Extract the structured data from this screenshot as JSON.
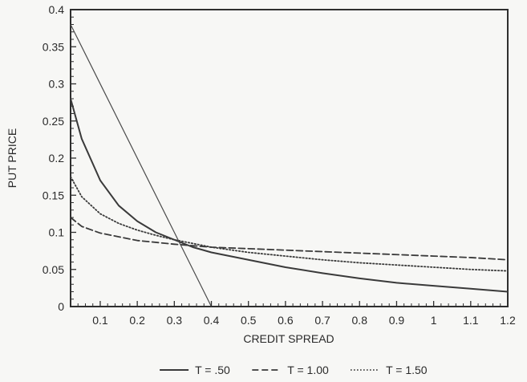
{
  "chart_data": {
    "type": "line",
    "xlabel": "CREDIT SPREAD",
    "ylabel": "PUT PRICE",
    "xlim": [
      0.02,
      1.2
    ],
    "ylim": [
      0,
      0.4
    ],
    "x_ticks": [
      0.1,
      0.2,
      0.3,
      0.4,
      0.5,
      0.6,
      0.7,
      0.8,
      0.9,
      1,
      1.1,
      1.2
    ],
    "x_tick_labels": [
      "0.1",
      "0.2",
      "0.3",
      "0.4",
      "0.5",
      "0.6",
      "0.7",
      "0.8",
      "0.9",
      "1",
      "1.1",
      "1.2"
    ],
    "y_ticks": [
      0,
      0.05,
      0.1,
      0.15,
      0.2,
      0.25,
      0.3,
      0.35,
      0.4
    ],
    "y_tick_labels": [
      "0",
      "0.05",
      "0.1",
      "0.15",
      "0.2",
      "0.25",
      "0.3",
      "0.35",
      "0.4"
    ],
    "grid": false,
    "legend_position": "bottom",
    "series": [
      {
        "name": "T = .50",
        "style": "solid",
        "color": "#3a3a3a",
        "points": [
          [
            0.02,
            0.28
          ],
          [
            0.05,
            0.226
          ],
          [
            0.1,
            0.17
          ],
          [
            0.15,
            0.136
          ],
          [
            0.2,
            0.115
          ],
          [
            0.25,
            0.1
          ],
          [
            0.3,
            0.09
          ],
          [
            0.35,
            0.08
          ],
          [
            0.4,
            0.073
          ],
          [
            0.5,
            0.063
          ],
          [
            0.6,
            0.053
          ],
          [
            0.7,
            0.045
          ],
          [
            0.8,
            0.038
          ],
          [
            0.9,
            0.032
          ],
          [
            1.0,
            0.028
          ],
          [
            1.1,
            0.024
          ],
          [
            1.2,
            0.02
          ]
        ]
      },
      {
        "name": "T = 1.00",
        "style": "dashed",
        "color": "#3a3a3a",
        "points": [
          [
            0.02,
            0.12
          ],
          [
            0.05,
            0.108
          ],
          [
            0.1,
            0.099
          ],
          [
            0.2,
            0.089
          ],
          [
            0.3,
            0.084
          ],
          [
            0.35,
            0.082
          ],
          [
            0.4,
            0.08
          ],
          [
            0.5,
            0.078
          ],
          [
            0.6,
            0.076
          ],
          [
            0.7,
            0.074
          ],
          [
            0.8,
            0.072
          ],
          [
            0.9,
            0.07
          ],
          [
            1.0,
            0.068
          ],
          [
            1.1,
            0.066
          ],
          [
            1.2,
            0.063
          ]
        ]
      },
      {
        "name": "T = 1.50",
        "style": "dotted",
        "color": "#3a3a3a",
        "points": [
          [
            0.02,
            0.175
          ],
          [
            0.05,
            0.148
          ],
          [
            0.1,
            0.125
          ],
          [
            0.15,
            0.112
          ],
          [
            0.2,
            0.103
          ],
          [
            0.25,
            0.096
          ],
          [
            0.3,
            0.09
          ],
          [
            0.35,
            0.085
          ],
          [
            0.4,
            0.08
          ],
          [
            0.5,
            0.073
          ],
          [
            0.6,
            0.068
          ],
          [
            0.7,
            0.063
          ],
          [
            0.8,
            0.059
          ],
          [
            0.9,
            0.056
          ],
          [
            1.0,
            0.053
          ],
          [
            1.1,
            0.05
          ],
          [
            1.2,
            0.048
          ]
        ]
      },
      {
        "name": "",
        "style": "thin",
        "color": "#4a4a4a",
        "points": [
          [
            0.02,
            0.38
          ],
          [
            0.4,
            0
          ]
        ]
      }
    ]
  }
}
